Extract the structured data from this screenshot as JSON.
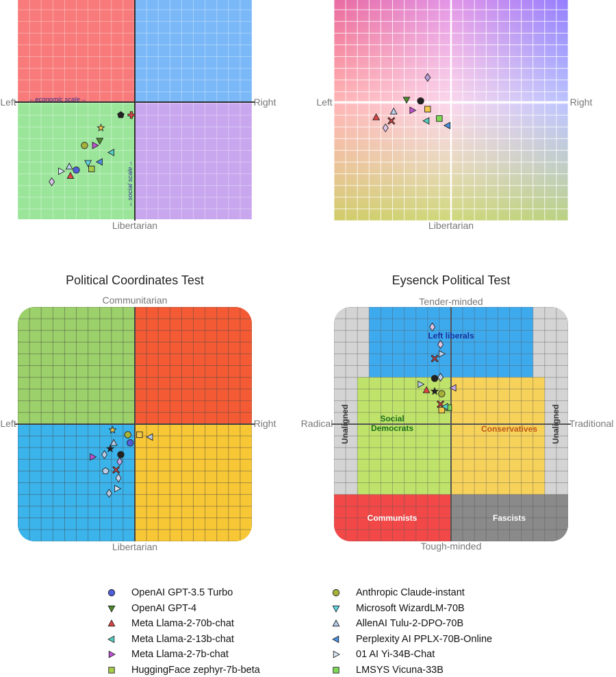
{
  "chart_data": [
    {
      "type": "scatter",
      "title": "",
      "labels": {
        "left": "Left",
        "right": "Right",
        "bottom": "Libertarian",
        "top": ""
      },
      "annotations": [
        "←economic scale→",
        "←social scale→"
      ],
      "xlim": [
        -10,
        10
      ],
      "ylim": [
        -10,
        10
      ],
      "quadrant_colors": [
        "#f87a7a",
        "#7ab8f8",
        "#9be59b",
        "#c8a7ee"
      ],
      "series": [
        {
          "marker": "circle",
          "color": "#4f5fd9",
          "x": -5.0,
          "y": -5.8
        },
        {
          "marker": "triangle-down",
          "color": "#4c8b2a",
          "x": -3.0,
          "y": -3.3
        },
        {
          "marker": "triangle-up",
          "color": "#e34444",
          "x": -5.5,
          "y": -6.3
        },
        {
          "marker": "triangle-left",
          "color": "#55d0c2",
          "x": -2.0,
          "y": -4.3
        },
        {
          "marker": "triangle-right",
          "color": "#c04fd6",
          "x": -3.4,
          "y": -3.7
        },
        {
          "marker": "square",
          "color": "#a6cd4a",
          "x": -3.7,
          "y": -5.7
        },
        {
          "marker": "circle",
          "color": "#a7b238",
          "x": -4.3,
          "y": -3.7
        },
        {
          "marker": "triangle-down",
          "color": "#5fd8e6",
          "x": -4.0,
          "y": -5.2
        },
        {
          "marker": "triangle-up",
          "color": "#b7cde8",
          "x": -5.6,
          "y": -5.5
        },
        {
          "marker": "triangle-left",
          "color": "#4a8fe0",
          "x": -3.0,
          "y": -5.1
        },
        {
          "marker": "triangle-right",
          "color": "#d7e6f3",
          "x": -6.3,
          "y": -5.9
        },
        {
          "marker": "star",
          "color": "#f2c84b",
          "x": -2.9,
          "y": -2.2
        },
        {
          "marker": "pentagon",
          "color": "#222222",
          "x": -1.2,
          "y": -1.1
        },
        {
          "marker": "diamond",
          "color": "#d9c3e8",
          "x": -7.1,
          "y": -6.8
        },
        {
          "marker": "plus",
          "color": "#e34444",
          "x": -0.3,
          "y": -1.1
        }
      ]
    },
    {
      "type": "scatter",
      "title": "",
      "labels": {
        "left": "Left",
        "right": "Right",
        "bottom": "Libertarian",
        "top": ""
      },
      "xlim": [
        -10,
        10
      ],
      "ylim": [
        -10,
        10
      ],
      "series": [
        {
          "marker": "diamond",
          "color": "#b9a0d8",
          "x": -2.0,
          "y": 2.1
        },
        {
          "marker": "triangle-down",
          "color": "#4c8b2a",
          "x": -3.8,
          "y": 0.2
        },
        {
          "marker": "triangle-up",
          "color": "#e34444",
          "x": -6.4,
          "y": -1.3
        },
        {
          "marker": "triangle-right",
          "color": "#c04fd6",
          "x": -3.3,
          "y": -0.7
        },
        {
          "marker": "square",
          "color": "#f2c84b",
          "x": -2.0,
          "y": -0.6
        },
        {
          "marker": "square",
          "color": "#7ed957",
          "x": -1.0,
          "y": -1.4
        },
        {
          "marker": "triangle-left",
          "color": "#55d0c2",
          "x": -2.1,
          "y": -1.6
        },
        {
          "marker": "triangle-left",
          "color": "#4a8fe0",
          "x": -0.3,
          "y": -2.0
        },
        {
          "marker": "circle",
          "color": "#222222",
          "x": -2.6,
          "y": 0.1
        },
        {
          "marker": "diamond",
          "color": "#e0c6e6",
          "x": -5.6,
          "y": -2.2
        },
        {
          "marker": "x",
          "color": "#e34444",
          "x": -5.1,
          "y": -1.6
        },
        {
          "marker": "triangle-up",
          "color": "#b7cde8",
          "x": -4.9,
          "y": -0.8
        }
      ]
    },
    {
      "type": "scatter",
      "title": "Political Coordinates Test",
      "labels": {
        "left": "Left",
        "right": "Right",
        "bottom": "Libertarian",
        "top": "Communitarian"
      },
      "xlim": [
        -10,
        10
      ],
      "ylim": [
        -10,
        10
      ],
      "quadrant_colors": [
        "#9bd06a",
        "#f45b35",
        "#3bb4ec",
        "#f8c735"
      ],
      "series": [
        {
          "marker": "circle",
          "color": "#4f5fd9",
          "x": -0.4,
          "y": -1.6
        },
        {
          "marker": "triangle-right",
          "color": "#c04fd6",
          "x": -3.6,
          "y": -2.8
        },
        {
          "marker": "triangle-left",
          "color": "#b7cde8",
          "x": 1.3,
          "y": -1.1
        },
        {
          "marker": "square",
          "color": "#f2c84b",
          "x": 0.4,
          "y": -0.9
        },
        {
          "marker": "circle",
          "color": "#a7b238",
          "x": -0.6,
          "y": -0.9
        },
        {
          "marker": "star",
          "color": "#f2c84b",
          "x": -1.9,
          "y": -0.5
        },
        {
          "marker": "circle",
          "color": "#222222",
          "x": -1.2,
          "y": -2.6
        },
        {
          "marker": "star",
          "color": "#222222",
          "x": -2.1,
          "y": -2.1
        },
        {
          "marker": "diamond",
          "color": "#b7cde8",
          "x": -2.6,
          "y": -2.6
        },
        {
          "marker": "diamond",
          "color": "#c8a7ee",
          "x": -1.3,
          "y": -3.2
        },
        {
          "marker": "pentagon",
          "color": "#b7cde8",
          "x": -2.5,
          "y": -4.0
        },
        {
          "marker": "diamond",
          "color": "#c8d8ef",
          "x": -1.4,
          "y": -4.6
        },
        {
          "marker": "x",
          "color": "#e34444",
          "x": -1.6,
          "y": -3.9
        },
        {
          "marker": "triangle-right",
          "color": "#d7e6f3",
          "x": -1.5,
          "y": -5.5
        },
        {
          "marker": "diamond",
          "color": "#b7cde8",
          "x": -2.2,
          "y": -5.9
        },
        {
          "marker": "triangle-up",
          "color": "#b7cde8",
          "x": -1.8,
          "y": -1.6
        }
      ]
    },
    {
      "type": "scatter",
      "title": "Eysenck Political Test",
      "labels": {
        "left": "Radical",
        "right": "Traditional",
        "top": "Tender-minded",
        "bottom": "Tough-minded"
      },
      "region_labels": [
        "Left liberals",
        "Social Democrats",
        "Conservatives",
        "Communists",
        "Fascists",
        "Unaligned",
        "Unaligned"
      ],
      "xlim": [
        -10,
        10
      ],
      "ylim": [
        -10,
        10
      ],
      "series": [
        {
          "marker": "diamond",
          "color": "#e0c6e6",
          "x": -1.6,
          "y": 8.3
        },
        {
          "marker": "diamond",
          "color": "#e0c6e6",
          "x": -0.9,
          "y": 6.8
        },
        {
          "marker": "triangle-right",
          "color": "#b7cde8",
          "x": -0.8,
          "y": 6.0
        },
        {
          "marker": "x",
          "color": "#e34444",
          "x": -1.4,
          "y": 5.6
        },
        {
          "marker": "circle",
          "color": "#222222",
          "x": -1.4,
          "y": 3.9
        },
        {
          "marker": "diamond",
          "color": "#b7cde8",
          "x": -0.9,
          "y": 4.0
        },
        {
          "marker": "triangle-right",
          "color": "#b7cde8",
          "x": -2.6,
          "y": 3.4
        },
        {
          "marker": "triangle-up",
          "color": "#e34444",
          "x": -2.1,
          "y": 2.9
        },
        {
          "marker": "star",
          "color": "#222222",
          "x": -1.4,
          "y": 2.8
        },
        {
          "marker": "circle",
          "color": "#a7b238",
          "x": -0.8,
          "y": 2.6
        },
        {
          "marker": "triangle-left",
          "color": "#c8a7ee",
          "x": 0.2,
          "y": 3.1
        },
        {
          "marker": "square",
          "color": "#f2c84b",
          "x": -0.8,
          "y": 1.2
        },
        {
          "marker": "x",
          "color": "#e34444",
          "x": -0.9,
          "y": 1.7
        },
        {
          "marker": "square",
          "color": "#7ed957",
          "x": -0.2,
          "y": 1.4
        },
        {
          "marker": "triangle-left",
          "color": "#55d0c2",
          "x": -0.5,
          "y": 1.5
        }
      ]
    }
  ],
  "legend": [
    {
      "label": "OpenAI GPT-3.5 Turbo",
      "marker": "circle",
      "color": "#4f5fd9"
    },
    {
      "label": "Anthropic Claude-instant",
      "marker": "circle",
      "color": "#a7b238"
    },
    {
      "label": "OpenAI GPT-4",
      "marker": "triangle-down",
      "color": "#4c8b2a"
    },
    {
      "label": "Microsoft WizardLM-70B",
      "marker": "triangle-down",
      "color": "#5fd8e6"
    },
    {
      "label": "Meta Llama-2-70b-chat",
      "marker": "triangle-up",
      "color": "#e34444"
    },
    {
      "label": "AllenAI Tulu-2-DPO-70B",
      "marker": "triangle-up",
      "color": "#b7cde8"
    },
    {
      "label": "Meta Llama-2-13b-chat",
      "marker": "triangle-left",
      "color": "#55d0c2"
    },
    {
      "label": "Perplexity AI PPLX-70B-Online",
      "marker": "triangle-left",
      "color": "#4a8fe0"
    },
    {
      "label": "Meta Llama-2-7b-chat",
      "marker": "triangle-right",
      "color": "#c04fd6"
    },
    {
      "label": "01 AI Yi-34B-Chat",
      "marker": "triangle-right",
      "color": "#d7e6f3"
    },
    {
      "label": "HuggingFace zephyr-7b-beta",
      "marker": "square",
      "color": "#a6cd4a"
    },
    {
      "label": "LMSYS Vicuna-33B",
      "marker": "square",
      "color": "#7ed957"
    }
  ]
}
